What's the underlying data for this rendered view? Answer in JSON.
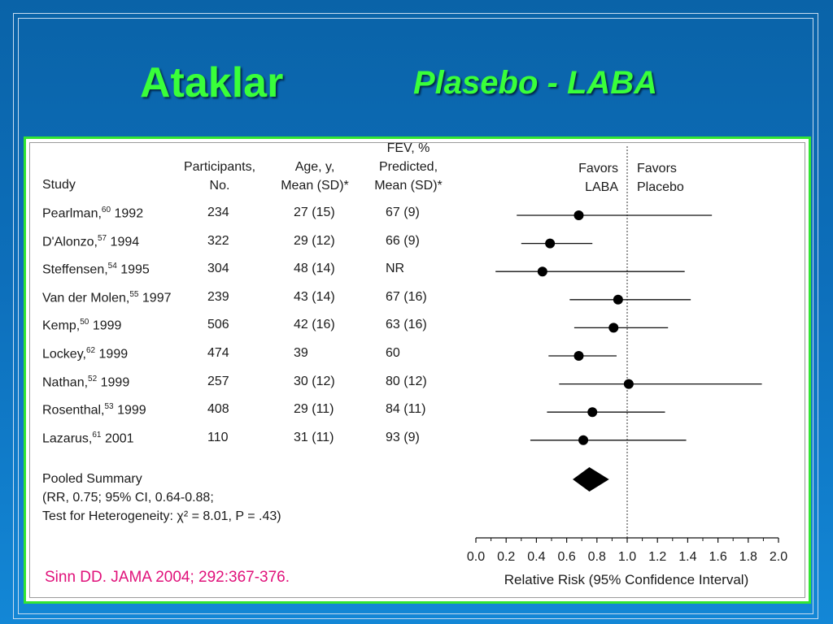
{
  "slide": {
    "title_main": "Ataklar",
    "title_sub": "Plasebo -  LABA",
    "citation": "Sinn DD.  JAMA 2004; 292:367-376."
  },
  "colors": {
    "title": "#39ff3a",
    "background": "#0d6fbb",
    "panel_border": "#33e533",
    "citation": "#e0117a"
  },
  "table": {
    "headers": {
      "study": "Study",
      "participants": [
        "Participants,",
        "No."
      ],
      "age": [
        "Age, y,",
        "Mean (SD)*"
      ],
      "fev": [
        "FEV, %",
        "Predicted,",
        "Mean (SD)*"
      ]
    },
    "rows": [
      {
        "study": "Pearlman,",
        "ref": "60",
        "year": "1992",
        "participants": "234",
        "age": "27 (15)",
        "fev": "67 (9)"
      },
      {
        "study": "D'Alonzo,",
        "ref": "57",
        "year": "1994",
        "participants": "322",
        "age": "29 (12)",
        "fev": "66 (9)"
      },
      {
        "study": "Steffensen,",
        "ref": "54",
        "year": "1995",
        "participants": "304",
        "age": "48 (14)",
        "fev": "NR"
      },
      {
        "study": "Van der Molen,",
        "ref": "55",
        "year": "1997",
        "participants": "239",
        "age": "43 (14)",
        "fev": "67 (16)"
      },
      {
        "study": "Kemp,",
        "ref": "50",
        "year": "1999",
        "participants": "506",
        "age": "42 (16)",
        "fev": "63 (16)"
      },
      {
        "study": "Lockey,",
        "ref": "62",
        "year": "1999",
        "participants": "474",
        "age": "39",
        "fev": "60"
      },
      {
        "study": "Nathan,",
        "ref": "52",
        "year": "1999",
        "participants": "257",
        "age": "30 (12)",
        "fev": "80 (12)"
      },
      {
        "study": "Rosenthal,",
        "ref": "53",
        "year": "1999",
        "participants": "408",
        "age": "29 (11)",
        "fev": "84 (11)"
      },
      {
        "study": "Lazarus,",
        "ref": "61",
        "year": "2001",
        "participants": "110",
        "age": "31 (11)",
        "fev": "93 (9)"
      }
    ],
    "pooled": {
      "line1": "Pooled Summary",
      "line2": "(RR, 0.75; 95% CI, 0.64-0.88;",
      "line3": "Test for Heterogeneity: χ² = 8.01, P = .43)"
    }
  },
  "chart_data": {
    "type": "forest",
    "xlabel": "Relative Risk (95% Confidence Interval)",
    "xlim": [
      0.0,
      2.0
    ],
    "xticks": [
      "0.0",
      "0.2",
      "0.4",
      "0.6",
      "0.8",
      "1.0",
      "1.2",
      "1.4",
      "1.6",
      "1.8",
      "2.0"
    ],
    "reference_line": 1.0,
    "favors_left": [
      "Favors",
      "LABA"
    ],
    "favors_right": [
      "Favors",
      "Placebo"
    ],
    "studies": [
      {
        "rr": 0.68,
        "lo": 0.27,
        "hi": 1.56
      },
      {
        "rr": 0.49,
        "lo": 0.3,
        "hi": 0.77
      },
      {
        "rr": 0.44,
        "lo": 0.13,
        "hi": 1.38
      },
      {
        "rr": 0.94,
        "lo": 0.62,
        "hi": 1.42
      },
      {
        "rr": 0.91,
        "lo": 0.65,
        "hi": 1.27
      },
      {
        "rr": 0.68,
        "lo": 0.48,
        "hi": 0.93
      },
      {
        "rr": 1.01,
        "lo": 0.55,
        "hi": 1.89
      },
      {
        "rr": 0.77,
        "lo": 0.47,
        "hi": 1.25
      },
      {
        "rr": 0.71,
        "lo": 0.36,
        "hi": 1.39
      }
    ],
    "pooled": {
      "rr": 0.75,
      "lo": 0.64,
      "hi": 0.88
    }
  }
}
